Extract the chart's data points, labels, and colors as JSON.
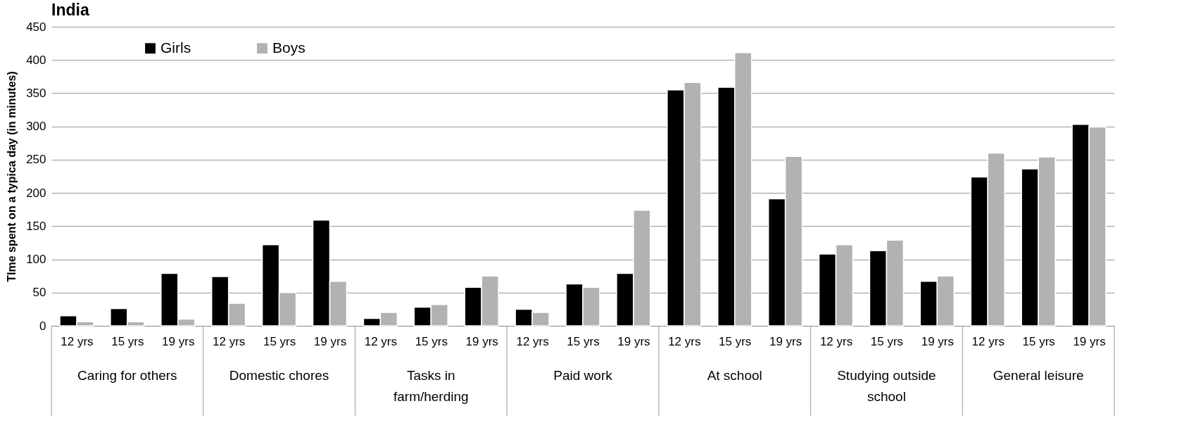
{
  "chart_data": {
    "type": "bar",
    "title": "India",
    "ylabel": "TIme spent on a typica day (in minutes)",
    "categories": [
      "12 yrs",
      "15 yrs",
      "19 yrs",
      "12 yrs",
      "15 yrs",
      "19 yrs",
      "12 yrs",
      "15 yrs",
      "19 yrs",
      "12 yrs",
      "15 yrs",
      "19 yrs",
      "12 yrs",
      "15 yrs",
      "19 yrs",
      "12 yrs",
      "15 yrs",
      "19 yrs",
      "12 yrs",
      "15 yrs",
      "19 yrs"
    ],
    "annotations": [
      "Caring for others",
      "Domestic chores",
      "Tasks in farm/herding",
      "Paid work",
      "At school",
      "Studying outside school",
      "General leisure"
    ],
    "series": [
      {
        "name": "Girls",
        "color": "#000000",
        "values": [
          15,
          26,
          79,
          74,
          122,
          159,
          11,
          28,
          58,
          25,
          63,
          79,
          355,
          359,
          191,
          108,
          113,
          67,
          224,
          236,
          303
        ]
      },
      {
        "name": "Boys",
        "color": "#b2b2b2",
        "values": [
          6,
          6,
          10,
          34,
          50,
          67,
          20,
          32,
          75,
          20,
          58,
          174,
          366,
          411,
          255,
          122,
          129,
          75,
          260,
          254,
          299
        ]
      }
    ],
    "ylim": [
      0,
      450
    ],
    "yticks": [
      0,
      50,
      100,
      150,
      200,
      250,
      300,
      350,
      400,
      450
    ],
    "grid": "y",
    "legend": "top left"
  }
}
